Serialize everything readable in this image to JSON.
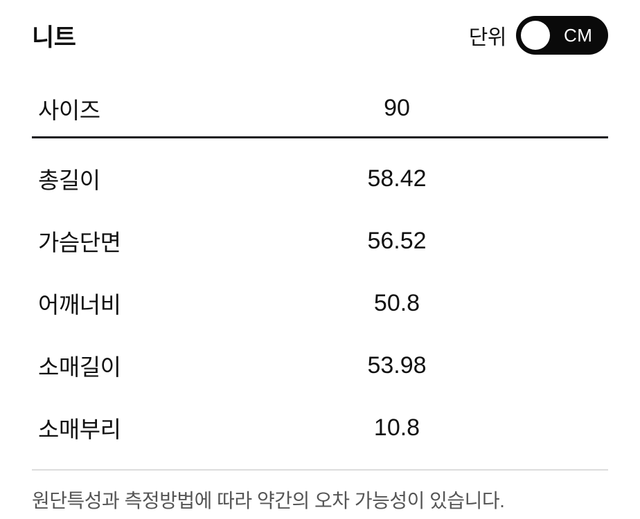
{
  "header": {
    "title": "니트",
    "unit": {
      "label": "단위",
      "selected": "CM",
      "toggle_on": true
    }
  },
  "table": {
    "header": {
      "label": "사이즈",
      "value": "90"
    },
    "rows": [
      {
        "label": "총길이",
        "value": "58.42"
      },
      {
        "label": "가슴단면",
        "value": "56.52"
      },
      {
        "label": "어깨너비",
        "value": "50.8"
      },
      {
        "label": "소매길이",
        "value": "53.98"
      },
      {
        "label": "소매부리",
        "value": "10.8"
      }
    ]
  },
  "footer": {
    "note": "원단특성과 측정방법에 따라 약간의 오차 가능성이 있습니다."
  },
  "colors": {
    "text": "#111111",
    "toggle_bg": "#0a0a0a",
    "toggle_knob": "#ffffff",
    "toggle_text": "#ffffff",
    "divider_dark": "#15151a",
    "divider_light": "#dcdcdc",
    "footer_text": "#555555",
    "background": "#ffffff"
  }
}
